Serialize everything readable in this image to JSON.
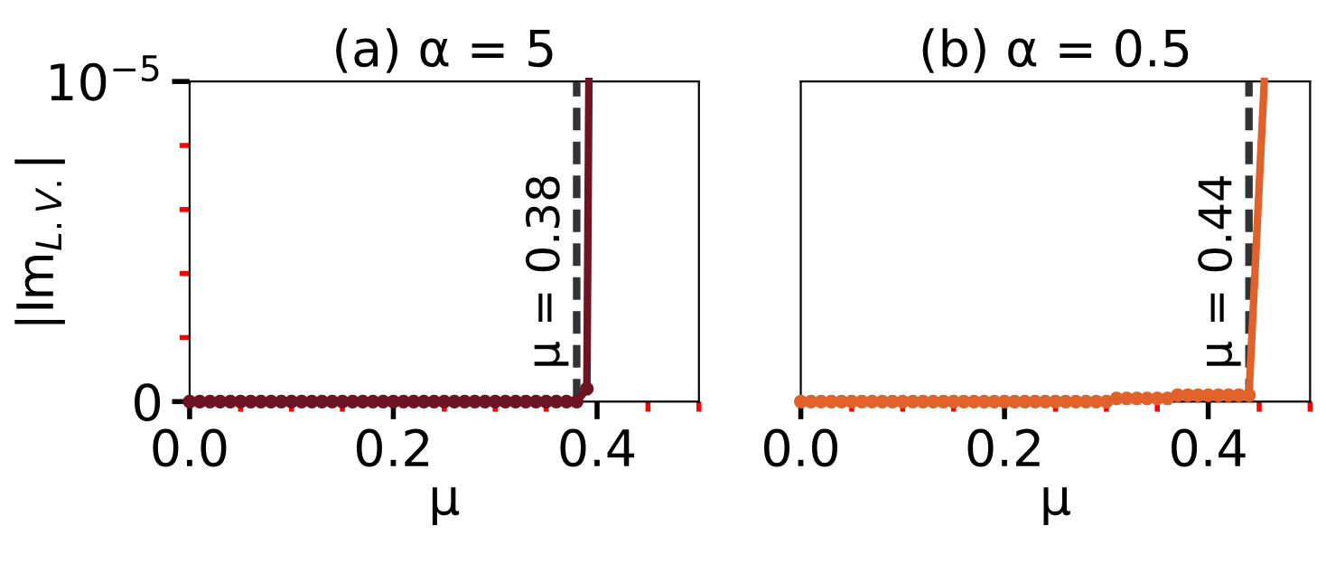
{
  "chart_data": [
    {
      "type": "line",
      "title": "(a) α = 5",
      "xlabel": "μ",
      "ylabel": "|Im$_{L.V.}$|",
      "marker": "circle",
      "line_style": "solid",
      "grid": false,
      "legend": false,
      "xlim": [
        0,
        0.5
      ],
      "xticks": [
        {
          "value": 0,
          "label": "0.0"
        },
        {
          "value": 0.05,
          "label": null
        },
        {
          "value": 0.1,
          "label": null
        },
        {
          "value": 0.15,
          "label": null
        },
        {
          "value": 0.2,
          "label": "0.2"
        },
        {
          "value": 0.25,
          "label": null
        },
        {
          "value": 0.3,
          "label": null
        },
        {
          "value": 0.35,
          "label": null
        },
        {
          "value": 0.4,
          "label": "0.4"
        },
        {
          "value": 0.45,
          "label": null
        },
        {
          "value": 0.5,
          "label": null
        }
      ],
      "ylim": [
        0,
        1e-05
      ],
      "yticks": [
        0,
        {
          "value": 2e-06,
          "label": null
        },
        {
          "value": 4e-06,
          "label": null
        },
        {
          "value": 6e-06,
          "label": null
        },
        {
          "value": 8e-06,
          "label": null
        },
        {
          "value": 1e-05,
          "label": "10$^{−5}$"
        }
      ],
      "ref_lines": [
        {
          "axis": "x",
          "value": 0.38,
          "label": "μ = 0.38",
          "color": "#333333",
          "line_style": "dashed"
        }
      ],
      "series": [
        {
          "color": "#6e1423",
          "x": [
            0,
            0.01,
            0.02,
            0.03,
            0.04,
            0.05,
            0.06,
            0.07,
            0.08,
            0.09,
            0.1,
            0.11,
            0.12,
            0.13,
            0.14,
            0.15,
            0.16,
            0.17,
            0.18,
            0.19,
            0.2,
            0.21,
            0.22,
            0.23,
            0.24,
            0.25,
            0.26,
            0.27,
            0.28,
            0.29,
            0.3,
            0.31,
            0.32,
            0.33,
            0.34,
            0.35,
            0.36,
            0.37,
            0.38,
            0.39,
            0.392
          ],
          "values": [
            0,
            0,
            0,
            0,
            0,
            0,
            0,
            0,
            0,
            0,
            0,
            0,
            0,
            0,
            0,
            0,
            0,
            0,
            0,
            0,
            0,
            0,
            0,
            0,
            0,
            0,
            0,
            0,
            0,
            0,
            0,
            0,
            0,
            0,
            0,
            0,
            0,
            0,
            0,
            4e-07,
            1e-05
          ]
        }
      ]
    },
    {
      "type": "line",
      "title": "(b) α = 0.5",
      "xlabel": "μ",
      "marker": "circle",
      "line_style": "solid",
      "grid": false,
      "legend": false,
      "tick_labels": "x",
      "xlim": [
        0,
        0.5
      ],
      "xticks": [
        {
          "value": 0,
          "label": "0.0"
        },
        {
          "value": 0.05,
          "label": null
        },
        {
          "value": 0.1,
          "label": null
        },
        {
          "value": 0.15,
          "label": null
        },
        {
          "value": 0.2,
          "label": "0.2"
        },
        {
          "value": 0.25,
          "label": null
        },
        {
          "value": 0.3,
          "label": null
        },
        {
          "value": 0.35,
          "label": null
        },
        {
          "value": 0.4,
          "label": "0.4"
        },
        {
          "value": 0.45,
          "label": null
        },
        {
          "value": 0.5,
          "label": null
        }
      ],
      "ylim": [
        0,
        1e-05
      ],
      "ref_lines": [
        {
          "axis": "x",
          "value": 0.44,
          "label": "μ = 0.44",
          "color": "#333333",
          "line_style": "dashed"
        }
      ],
      "series": [
        {
          "color": "#e0622a",
          "x": [
            0,
            0.01,
            0.02,
            0.03,
            0.04,
            0.05,
            0.06,
            0.07,
            0.08,
            0.09,
            0.1,
            0.11,
            0.12,
            0.13,
            0.14,
            0.15,
            0.16,
            0.17,
            0.18,
            0.19,
            0.2,
            0.21,
            0.22,
            0.23,
            0.24,
            0.25,
            0.26,
            0.27,
            0.28,
            0.29,
            0.3,
            0.31,
            0.32,
            0.33,
            0.34,
            0.35,
            0.36,
            0.37,
            0.38,
            0.39,
            0.4,
            0.41,
            0.42,
            0.43,
            0.44,
            0.455
          ],
          "values": [
            0,
            0,
            0,
            0,
            0,
            0,
            0,
            0,
            0,
            0,
            0,
            0,
            0,
            0,
            0,
            0,
            0,
            0,
            0,
            0,
            0,
            0,
            0,
            0,
            0,
            0,
            0,
            0,
            0,
            0,
            0,
            1e-07,
            1e-07,
            1e-07,
            1e-07,
            1e-07,
            1e-07,
            2e-07,
            2e-07,
            2e-07,
            2e-07,
            2e-07,
            2e-07,
            2e-07,
            2e-07,
            1e-05
          ]
        }
      ]
    }
  ]
}
